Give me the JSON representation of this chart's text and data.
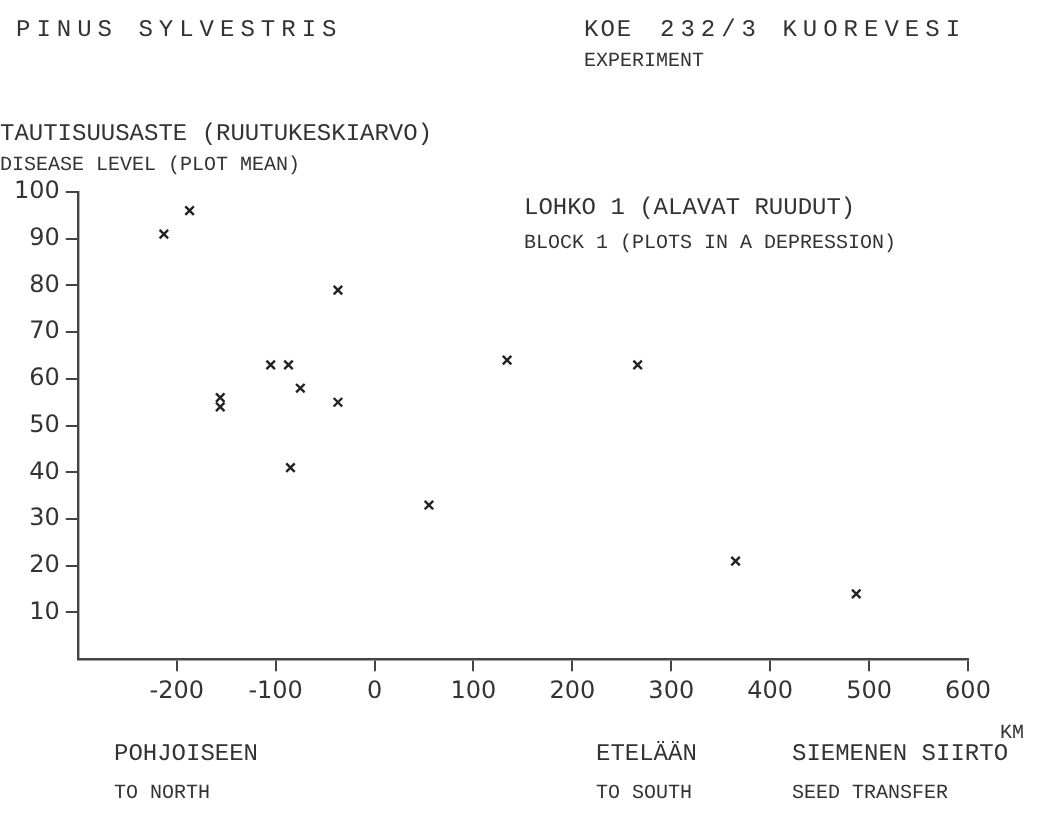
{
  "chart_data": {
    "type": "scatter",
    "title": "PINUS SYLVESTRIS",
    "ylabel": "TAUTISUUSASTE (RUUTUKESKIARVO)",
    "xlabel": "SIEMENEN SIIRTO",
    "annotations": [
      "KOE",
      "EXPERIMENT",
      "232/3 KUOREVESI",
      "DISEASE LEVEL (PLOT MEAN)",
      "LOHKO 1 (ALAVAT RUUDUT)",
      "BLOCK 1 (PLOTS IN A DEPRESSION)",
      "KM",
      "POHJOISEEN",
      "TO NORTH",
      "ETELÄÄN",
      "TO SOUTH",
      "SEED TRANSFER"
    ],
    "x": [
      -213,
      -187,
      -156,
      -156,
      -105,
      -87,
      -75,
      -85,
      -37,
      -37,
      55,
      134,
      266,
      365,
      487
    ],
    "values": [
      91,
      96,
      56,
      54,
      63,
      63,
      58,
      41,
      79,
      55,
      33,
      64,
      63,
      21,
      14
    ],
    "color": "#222222",
    "marker": "cross",
    "grid": false,
    "legend": false,
    "xlim": [
      -300,
      600
    ],
    "xticks": [
      -200,
      -100,
      0,
      100,
      200,
      300,
      400,
      500,
      600
    ],
    "ylim": [
      0,
      100
    ],
    "yticks": [
      10,
      20,
      30,
      40,
      50,
      60,
      70,
      80,
      90,
      100
    ]
  }
}
